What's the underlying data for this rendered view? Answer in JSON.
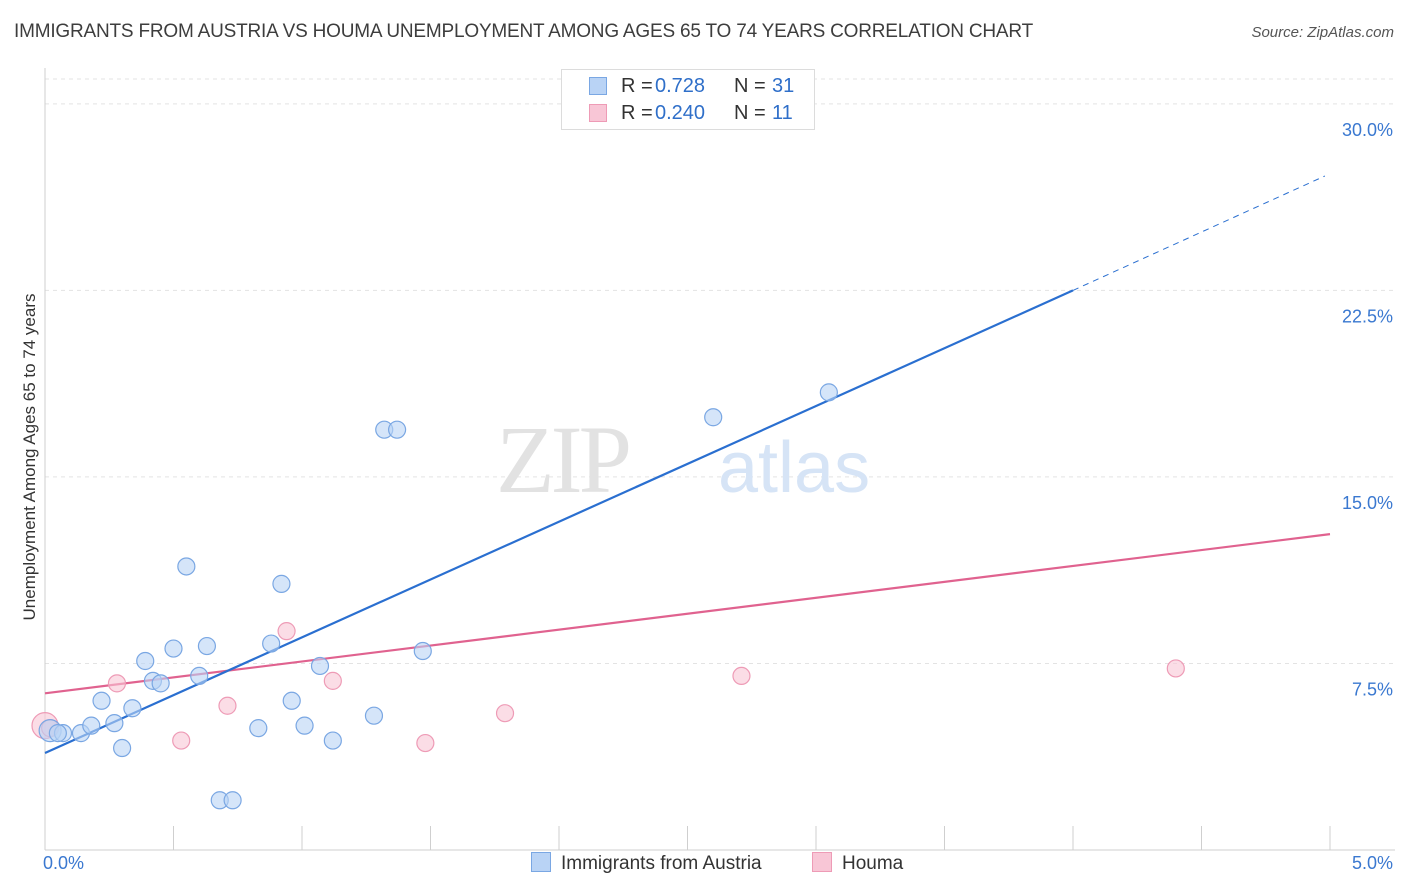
{
  "title": "IMMIGRANTS FROM AUSTRIA VS HOUMA UNEMPLOYMENT AMONG AGES 65 TO 74 YEARS CORRELATION CHART",
  "source": "Source: ZipAtlas.com",
  "watermark": {
    "zip": "ZIP",
    "atlas": "atlas"
  },
  "legend": {
    "rows": [
      {
        "r_label": "R =",
        "r_value": "0.728",
        "n_label": "N =",
        "n_value": "31"
      },
      {
        "r_label": "R =",
        "r_value": "0.240",
        "n_label": "N =",
        "n_value": "11"
      }
    ]
  },
  "colors": {
    "austria_fill": "#b9d3f5",
    "austria_stroke": "#7aa7e3",
    "austria_line": "#2a6fd0",
    "houma_fill": "#f8c6d6",
    "houma_stroke": "#ee9bb6",
    "houma_line": "#e0628f",
    "tick_label": "#3a78d0",
    "grid": "#e3e3e3"
  },
  "chart_data": {
    "type": "scatter",
    "title": "IMMIGRANTS FROM AUSTRIA VS HOUMA UNEMPLOYMENT AMONG AGES 65 TO 74 YEARS CORRELATION CHART",
    "xlabel": "",
    "ylabel": "Unemployment Among Ages 65 to 74 years",
    "xlim": [
      0,
      5
    ],
    "ylim": [
      0,
      31
    ],
    "x_tick_labels": [
      "0.0%",
      "5.0%"
    ],
    "y_ticks": [
      7.5,
      15,
      22.5,
      30
    ],
    "y_tick_labels": [
      "7.5%",
      "15.0%",
      "22.5%",
      "30.0%"
    ],
    "grid": true,
    "legend_position": "top-center",
    "series": [
      {
        "name": "Immigrants from Austria",
        "r": 0.728,
        "n": 31,
        "points": [
          [
            0.02,
            4.8
          ],
          [
            0.07,
            4.7
          ],
          [
            0.14,
            4.7
          ],
          [
            0.18,
            5.0
          ],
          [
            0.22,
            6.0
          ],
          [
            0.27,
            5.1
          ],
          [
            0.3,
            4.1
          ],
          [
            0.34,
            5.7
          ],
          [
            0.39,
            7.6
          ],
          [
            0.42,
            6.8
          ],
          [
            0.45,
            6.7
          ],
          [
            0.5,
            8.1
          ],
          [
            0.55,
            11.4
          ],
          [
            0.6,
            7.0
          ],
          [
            0.63,
            8.2
          ],
          [
            0.68,
            2.0
          ],
          [
            0.73,
            2.0
          ],
          [
            0.83,
            4.9
          ],
          [
            0.88,
            8.3
          ],
          [
            0.92,
            10.7
          ],
          [
            0.96,
            6.0
          ],
          [
            1.01,
            5.0
          ],
          [
            1.07,
            7.4
          ],
          [
            1.12,
            4.4
          ],
          [
            1.28,
            5.4
          ],
          [
            1.32,
            16.9
          ],
          [
            1.37,
            16.9
          ],
          [
            1.47,
            8.0
          ],
          [
            2.6,
            17.4
          ],
          [
            3.05,
            18.4
          ],
          [
            0.05,
            4.7
          ]
        ],
        "trend": {
          "x": [
            0,
            4,
            4.98
          ],
          "y": [
            3.9,
            22.5,
            27.1
          ],
          "dashed_from_x": 4
        }
      },
      {
        "name": "Houma",
        "r": 0.24,
        "n": 11,
        "points": [
          [
            0.0,
            5.0
          ],
          [
            0.02,
            4.9
          ],
          [
            0.28,
            6.7
          ],
          [
            0.53,
            4.4
          ],
          [
            0.71,
            5.8
          ],
          [
            0.94,
            8.8
          ],
          [
            1.12,
            6.8
          ],
          [
            1.48,
            4.3
          ],
          [
            1.79,
            5.5
          ],
          [
            2.71,
            7.0
          ],
          [
            4.4,
            7.3
          ]
        ],
        "trend": {
          "x": [
            0,
            5
          ],
          "y": [
            6.3,
            12.7
          ]
        }
      }
    ]
  },
  "bottom_legend": {
    "a": "Immigrants from Austria",
    "b": "Houma"
  }
}
